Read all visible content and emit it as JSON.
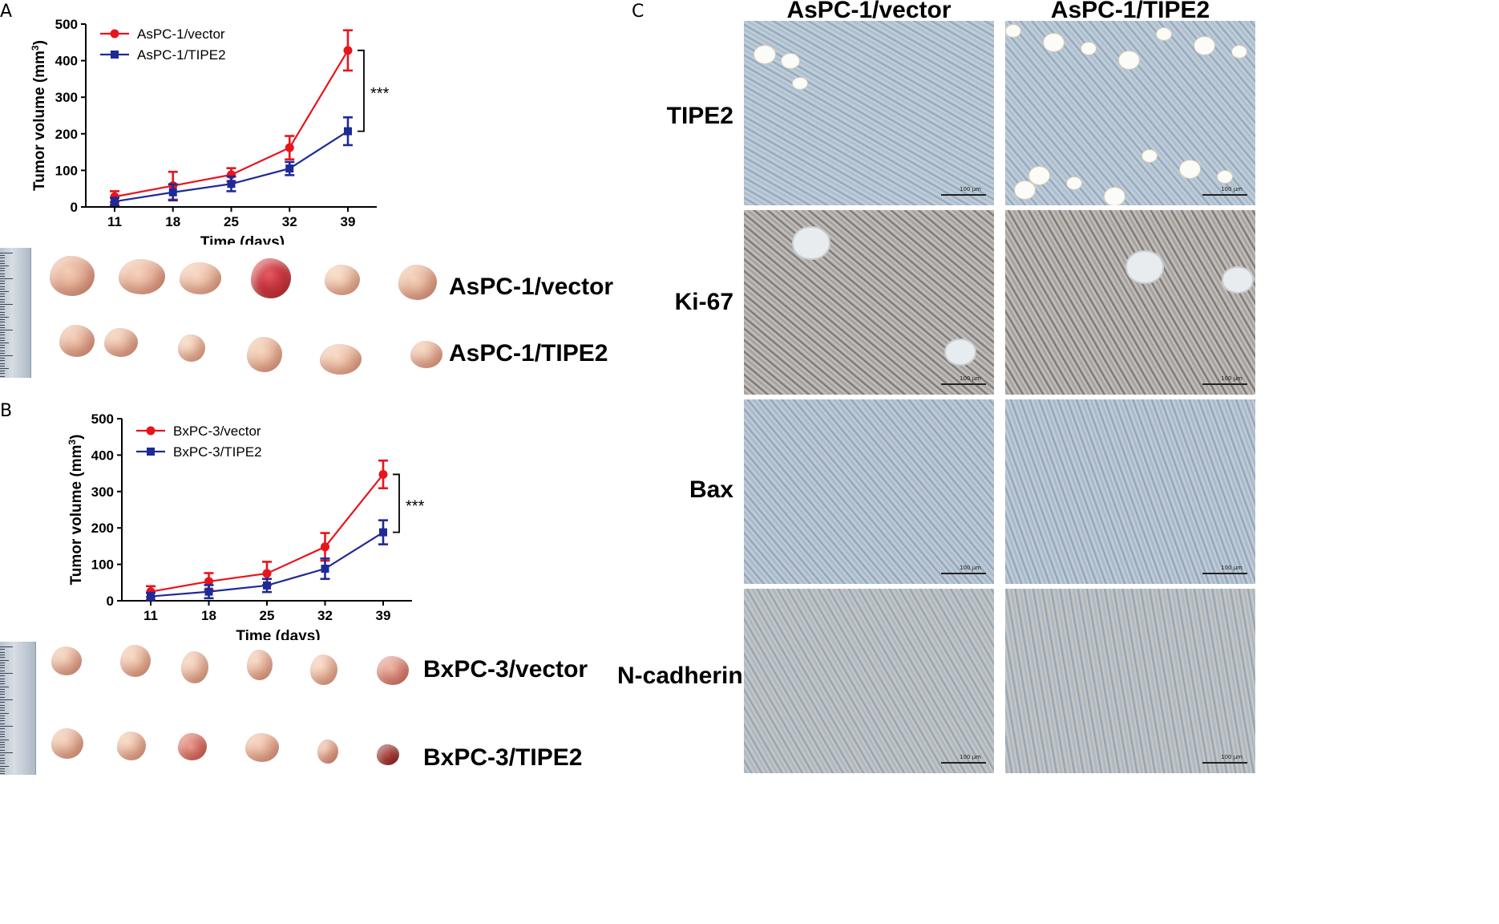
{
  "panels": {
    "a": "A",
    "b": "B",
    "c": "C"
  },
  "chart_data": [
    {
      "type": "line",
      "panel": "A",
      "x": [
        11,
        18,
        25,
        32,
        39
      ],
      "x_tick_labels": [
        "11",
        "18",
        "25",
        "32",
        "39"
      ],
      "y_tick_labels": [
        "0",
        "100",
        "200",
        "300",
        "400",
        "500"
      ],
      "xlabel": "Time (days)",
      "ylabel": "Tumor volume (mm",
      "ylabel_sup": "3",
      "ylabel_close": ")",
      "ylim": [
        0,
        500
      ],
      "significance": "***",
      "legend_position": "top-left",
      "series": [
        {
          "name": "AsPC-1/vector",
          "color": "#e8141c",
          "marker": "circle",
          "values": [
            28,
            58,
            88,
            162,
            428
          ],
          "err": [
            15,
            38,
            18,
            32,
            55
          ]
        },
        {
          "name": "AsPC-1/TIPE2",
          "color": "#1f2a96",
          "marker": "square",
          "values": [
            15,
            40,
            63,
            105,
            207
          ],
          "err": [
            10,
            22,
            20,
            18,
            38
          ]
        }
      ]
    },
    {
      "type": "line",
      "panel": "B",
      "x": [
        11,
        18,
        25,
        32,
        39
      ],
      "x_tick_labels": [
        "11",
        "18",
        "25",
        "32",
        "39"
      ],
      "y_tick_labels": [
        "0",
        "100",
        "200",
        "300",
        "400",
        "500"
      ],
      "xlabel": "Time (days)",
      "ylabel": "Tumor volume (mm",
      "ylabel_sup": "3",
      "ylabel_close": ")",
      "ylim": [
        0,
        500
      ],
      "significance": "***",
      "legend_position": "top-left",
      "series": [
        {
          "name": "BxPC-3/vector",
          "color": "#e8141c",
          "marker": "circle",
          "values": [
            25,
            53,
            75,
            148,
            347
          ],
          "err": [
            15,
            23,
            32,
            38,
            38
          ]
        },
        {
          "name": "BxPC-3/TIPE2",
          "color": "#1f2a96",
          "marker": "square",
          "values": [
            12,
            25,
            42,
            88,
            188
          ],
          "err": [
            10,
            18,
            18,
            28,
            33
          ]
        }
      ]
    }
  ],
  "tumor_photos": {
    "a_row1_label": "AsPC-1/vector",
    "a_row2_label": "AsPC-1/TIPE2",
    "b_row1_label": "BxPC-3/vector",
    "b_row2_label": "BxPC-3/TIPE2"
  },
  "ihc": {
    "columns": [
      "AsPC-1/vector",
      "AsPC-1/TIPE2"
    ],
    "rows": [
      "TIPE2",
      "Ki-67",
      "Bax",
      "N-cadherin"
    ],
    "scale_bar": "100 μm"
  }
}
